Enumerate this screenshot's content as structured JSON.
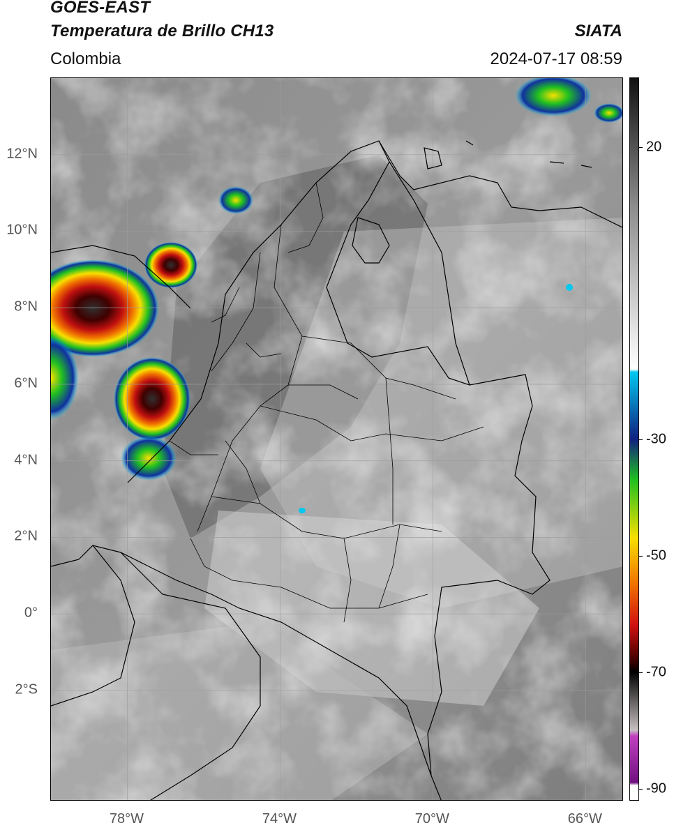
{
  "header": {
    "title_line1": "GOES-EAST",
    "title_line2": "Temperatura de Brillo CH13",
    "region": "Colombia",
    "organization": "SIATA",
    "timestamp": "2024-07-17 08:59"
  },
  "map": {
    "lon_range": [
      -80,
      -65
    ],
    "lat_range": [
      -4.9,
      14
    ],
    "latitude_ticks": [
      {
        "value": 12,
        "label": "12°N"
      },
      {
        "value": 10,
        "label": "10°N"
      },
      {
        "value": 8,
        "label": "8°N"
      },
      {
        "value": 6,
        "label": "6°N"
      },
      {
        "value": 4,
        "label": "4°N"
      },
      {
        "value": 2,
        "label": "2°N"
      },
      {
        "value": 0,
        "label": "0°"
      },
      {
        "value": -2,
        "label": "2°S"
      }
    ],
    "longitude_ticks": [
      {
        "value": -78,
        "label": "78°W"
      },
      {
        "value": -74,
        "label": "74°W"
      },
      {
        "value": -70,
        "label": "70°W"
      },
      {
        "value": -66,
        "label": "66°W"
      }
    ],
    "gridlines": true
  },
  "colorbar": {
    "min": -92,
    "max": 32,
    "ticks": [
      {
        "value": 20,
        "label": "20"
      },
      {
        "value": -30,
        "label": "-30"
      },
      {
        "value": -50,
        "label": "-50"
      },
      {
        "value": -70,
        "label": "-70"
      },
      {
        "value": -90,
        "label": "-90"
      }
    ],
    "colors": {
      "warm_gray_top": "#111111",
      "gray_mid": "#8c8c8c",
      "white": "#ffffff",
      "cyan": "#00c8f0",
      "blue": "#102080",
      "green": "#20c020",
      "yellow": "#f8e000",
      "orange": "#f07000",
      "red": "#d01010",
      "dark_red": "#400000",
      "black": "#000000",
      "magenta": "#c040c0",
      "purple": "#701080"
    }
  }
}
